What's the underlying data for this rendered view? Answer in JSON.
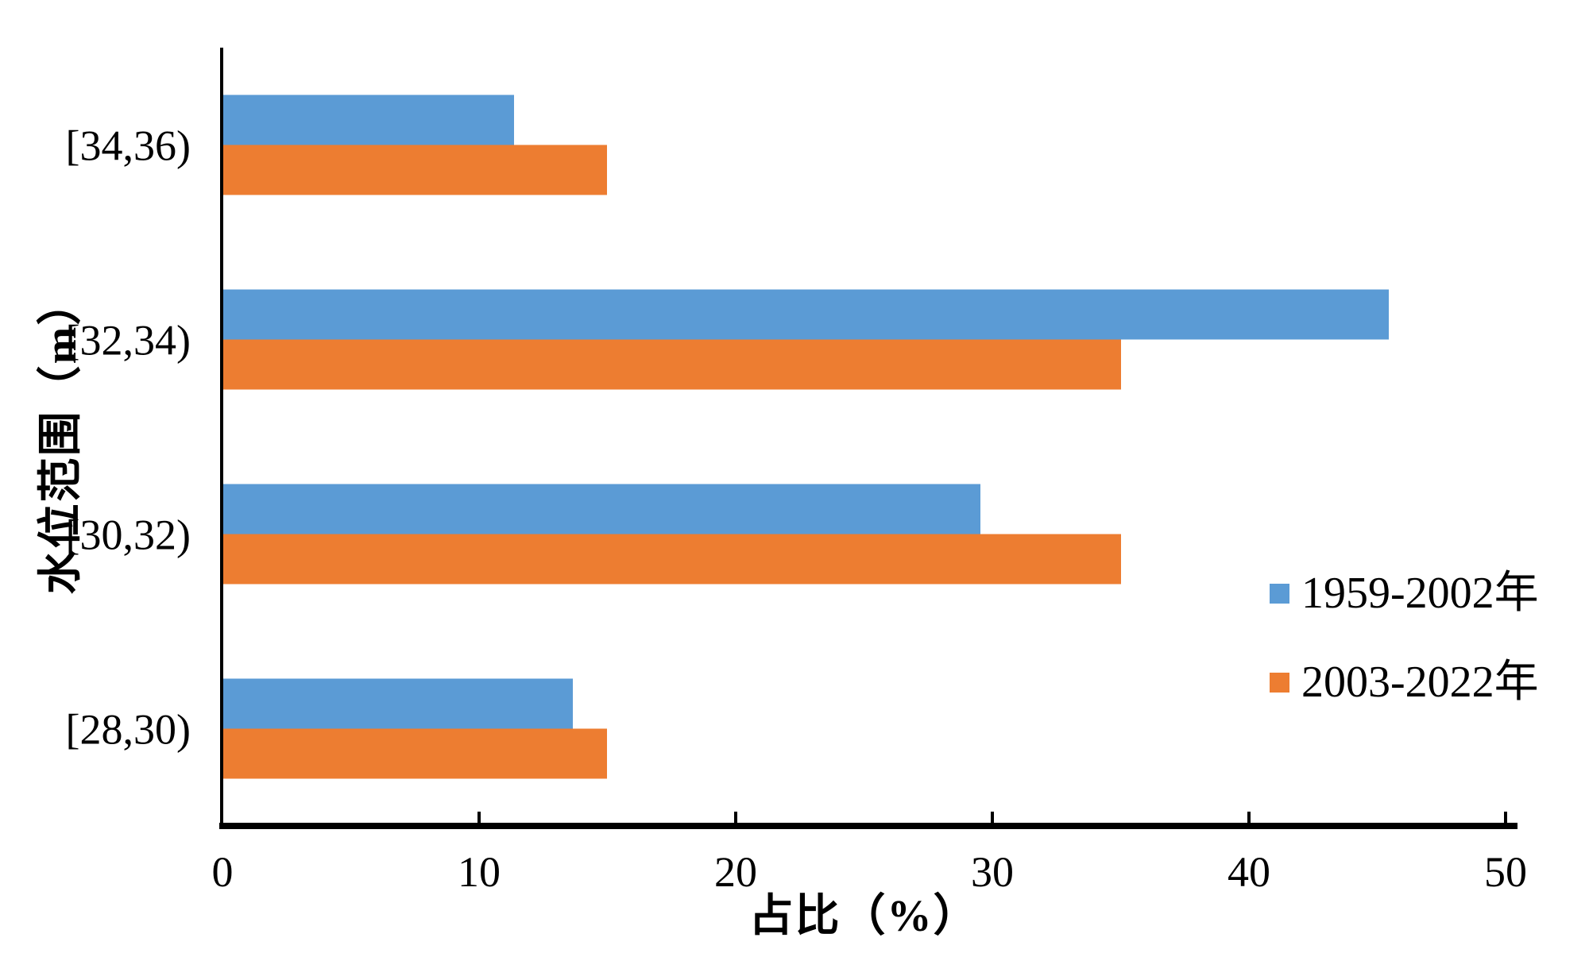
{
  "chart_data": {
    "type": "bar",
    "orientation": "horizontal-grouped",
    "title": "",
    "xlabel": "占比（%）",
    "ylabel": "水位范围（m）",
    "categories": [
      "[34,36)",
      "[32,34)",
      "[30,32)",
      "[28,30)"
    ],
    "series": [
      {
        "name": "1959-2002年",
        "color": "#5B9BD5",
        "values": [
          11.36,
          45.45,
          29.55,
          13.64
        ]
      },
      {
        "name": "2003-2022年",
        "color": "#ED7D31",
        "values": [
          15,
          35,
          35,
          15
        ]
      }
    ],
    "xlim": [
      0,
      50
    ],
    "xticks": [
      0,
      10,
      20,
      30,
      40,
      50
    ],
    "grid": false,
    "legend_position": "inside-right-middle",
    "axis_color": "#000000",
    "background_color": "#ffffff"
  }
}
